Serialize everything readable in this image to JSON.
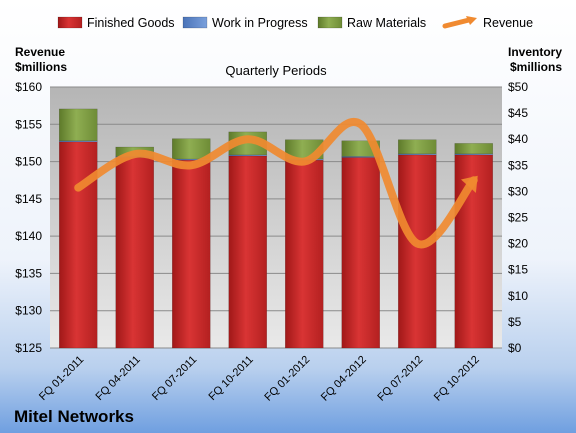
{
  "company": "Mitel Networks",
  "chart_data": {
    "type": "bar",
    "title": "Quarterly Periods",
    "categories": [
      "FQ 01-2011",
      "FQ 04-2011",
      "FQ 07-2011",
      "FQ 10-2011",
      "FQ 01-2012",
      "FQ 04-2012",
      "FQ 07-2012",
      "FQ 10-2012"
    ],
    "series": [
      {
        "name": "Finished Goods",
        "type": "bar",
        "axis": "right",
        "color": "#d42a2a",
        "values": [
          39.5,
          36.5,
          36,
          36.8,
          36,
          36.5,
          37,
          37
        ]
      },
      {
        "name": "Work in Progress",
        "type": "bar",
        "axis": "right",
        "color": "#5b86c8",
        "values": [
          0.2,
          0.2,
          0.2,
          0.2,
          0.2,
          0.2,
          0.2,
          0.2
        ]
      },
      {
        "name": "Raw Materials",
        "type": "bar",
        "axis": "right",
        "color": "#8aa84a",
        "values": [
          6.1,
          1.8,
          3.9,
          4.4,
          3.7,
          3.0,
          2.7,
          2.0
        ]
      },
      {
        "name": "Revenue",
        "type": "line",
        "axis": "left",
        "color": "#f08a30",
        "values": [
          146.5,
          151,
          149.5,
          153,
          150,
          155,
          139,
          147.5
        ]
      }
    ],
    "y_left": {
      "label_line1": "Revenue",
      "label_line2": "$millions",
      "min": 125,
      "max": 160,
      "step": 5,
      "tick_labels": [
        "$125",
        "$130",
        "$135",
        "$140",
        "$145",
        "$150",
        "$155",
        "$160"
      ]
    },
    "y_right": {
      "label_line1": "Inventory",
      "label_line2": "$millions",
      "min": 0,
      "max": 50,
      "step": 5,
      "tick_labels": [
        "$0",
        "$5",
        "$10",
        "$15",
        "$20",
        "$25",
        "$30",
        "$35",
        "$40",
        "$45",
        "$50"
      ]
    },
    "legend_position": "top",
    "grid": true
  }
}
